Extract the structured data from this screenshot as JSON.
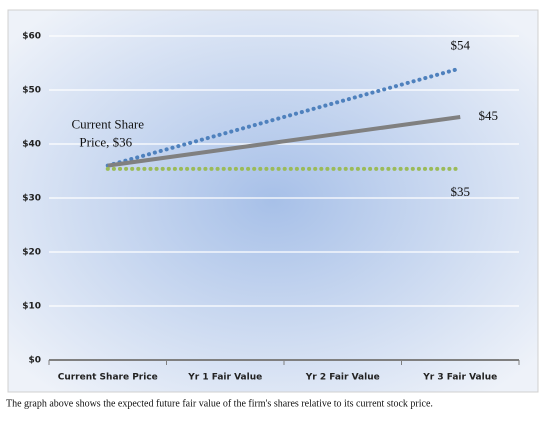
{
  "chart_data": {
    "type": "line",
    "categories": [
      "Current Share Price",
      "Yr 1 Fair Value",
      "Yr 2 Fair Value",
      "Yr 3 Fair Value"
    ],
    "series": [
      {
        "color": "#4f81bd",
        "style": "dotted",
        "values": [
          36,
          42,
          48,
          54
        ],
        "value_labels": [
          null,
          null,
          null,
          "$54"
        ]
      },
      {
        "color": "#808080",
        "style": "solid",
        "values": [
          36,
          39,
          42,
          45
        ],
        "value_labels": [
          null,
          null,
          null,
          "$45"
        ]
      },
      {
        "color": "#9bbb59",
        "style": "dotted",
        "values": [
          35.4,
          35.4,
          35.4,
          35.4
        ],
        "value_labels": [
          null,
          null,
          null,
          "$35"
        ]
      }
    ],
    "annotation": [
      "Current Share",
      "Price, $36"
    ],
    "ylim": [
      0,
      60
    ],
    "yticks": [
      {
        "value": 0,
        "label": "$0"
      },
      {
        "value": 10,
        "label": "$10"
      },
      {
        "value": 20,
        "label": "$20"
      },
      {
        "value": 30,
        "label": "$30"
      },
      {
        "value": 40,
        "label": "$40"
      },
      {
        "value": 50,
        "label": "$50"
      },
      {
        "value": 60,
        "label": "$60"
      }
    ],
    "grid": true,
    "caption": "The graph above shows the expected future fair value of the firm's shares relative to its current stock price."
  }
}
